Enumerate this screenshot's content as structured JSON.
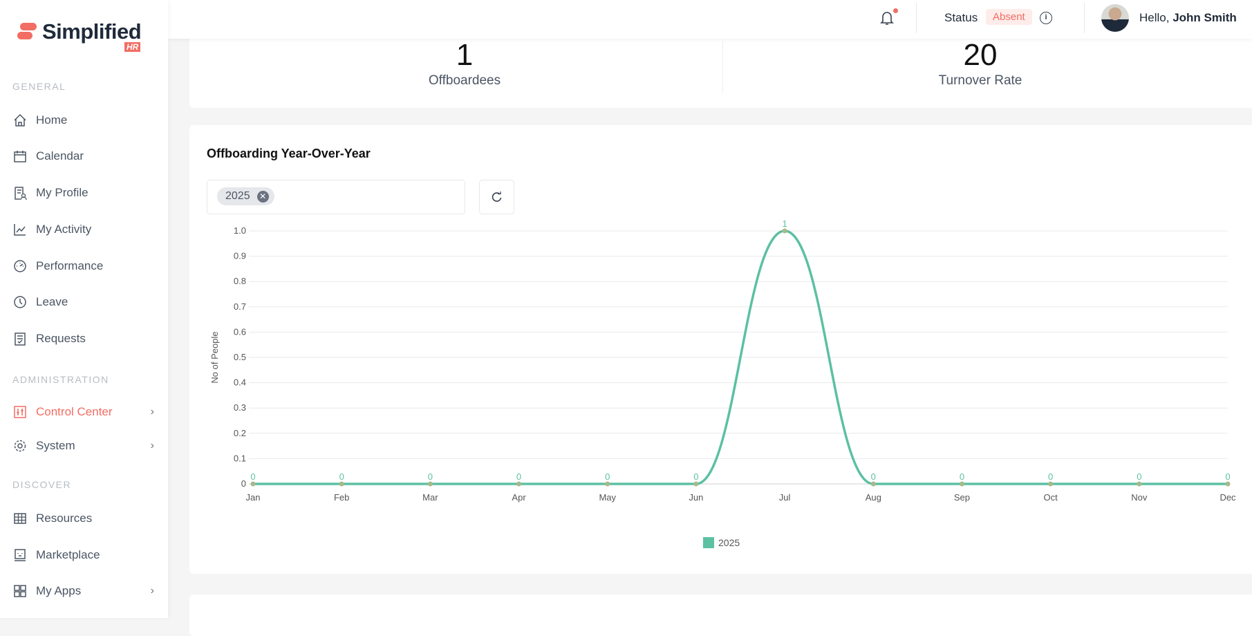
{
  "brand": {
    "name": "Simplified",
    "badge": "HR"
  },
  "sidebar": {
    "sections": [
      {
        "label": "GENERAL"
      },
      {
        "label": "ADMINISTRATION"
      },
      {
        "label": "DISCOVER"
      }
    ],
    "items": [
      {
        "label": "Home",
        "icon": "home-icon"
      },
      {
        "label": "Calendar",
        "icon": "calendar-icon"
      },
      {
        "label": "My Profile",
        "icon": "profile-icon"
      },
      {
        "label": "My Activity",
        "icon": "activity-icon"
      },
      {
        "label": "Performance",
        "icon": "gauge-icon"
      },
      {
        "label": "Leave",
        "icon": "clock-icon"
      },
      {
        "label": "Requests",
        "icon": "requests-icon"
      },
      {
        "label": "Control Center",
        "icon": "sliders-icon",
        "active": true,
        "chevron": "›"
      },
      {
        "label": "System",
        "icon": "gear-icon",
        "chevron": "›"
      },
      {
        "label": "Resources",
        "icon": "grid-icon"
      },
      {
        "label": "Marketplace",
        "icon": "marketplace-icon"
      },
      {
        "label": "My Apps",
        "icon": "apps-icon",
        "chevron": "›"
      }
    ]
  },
  "header": {
    "status_label": "Status",
    "status_value": "Absent",
    "greeting": "Hello,",
    "user_name": "John Smith"
  },
  "stats": [
    {
      "value": "1",
      "label": "Offboardees"
    },
    {
      "value": "20",
      "label": "Turnover Rate"
    }
  ],
  "chart_card": {
    "title": "Offboarding Year-Over-Year",
    "filter_chip": "2025",
    "chip_remove": "✕"
  },
  "colors": {
    "accent": "#f26d63",
    "series": "#5cc0a3"
  },
  "chart_data": {
    "type": "line",
    "title": "Offboarding Year-Over-Year",
    "xlabel": "",
    "ylabel": "No of People",
    "categories": [
      "Jan",
      "Feb",
      "Mar",
      "Apr",
      "May",
      "Jun",
      "Jul",
      "Aug",
      "Sep",
      "Oct",
      "Nov",
      "Dec"
    ],
    "series": [
      {
        "name": "2025",
        "values": [
          0,
          0,
          0,
          0,
          0,
          0,
          1,
          0,
          0,
          0,
          0,
          0
        ]
      }
    ],
    "ylim": [
      0,
      1.0
    ],
    "yticks": [
      "0",
      "0.1",
      "0.2",
      "0.3",
      "0.4",
      "0.5",
      "0.6",
      "0.7",
      "0.8",
      "0.9",
      "1.0"
    ],
    "grid": true,
    "legend": "bottom"
  }
}
